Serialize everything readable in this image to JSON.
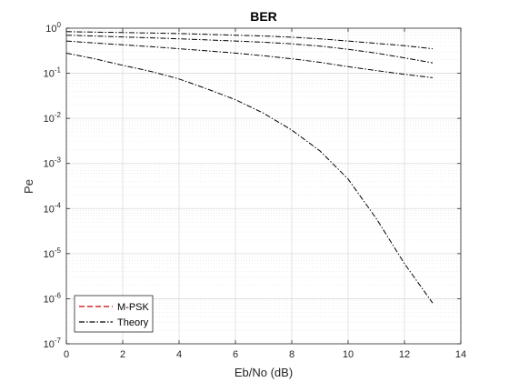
{
  "chart_data": {
    "type": "line",
    "title": "BER",
    "xlabel": "Eb/No (dB)",
    "ylabel": "Pe",
    "xlim": [
      0,
      14
    ],
    "ylim": [
      1e-07,
      1
    ],
    "yscale": "log",
    "grid": true,
    "legend": {
      "placement": "bottom-left",
      "entries": [
        "M-PSK",
        "Theory"
      ]
    },
    "x_ticks": [
      "0",
      "2",
      "4",
      "6",
      "8",
      "10",
      "12",
      "14"
    ],
    "y_ticks": [
      {
        "base": "10",
        "exp": "0"
      },
      {
        "base": "10",
        "exp": "-1"
      },
      {
        "base": "10",
        "exp": "-2"
      },
      {
        "base": "10",
        "exp": "-3"
      },
      {
        "base": "10",
        "exp": "-4"
      },
      {
        "base": "10",
        "exp": "-5"
      },
      {
        "base": "10",
        "exp": "-6"
      },
      {
        "base": "10",
        "exp": "-7"
      }
    ],
    "x": [
      0,
      1,
      2,
      3,
      4,
      5,
      6,
      7,
      8,
      9,
      10,
      11,
      12,
      13
    ],
    "series": [
      {
        "legend": "Theory",
        "color": "#000000",
        "style": "dash-dot",
        "values": [
          0.28,
          0.21,
          0.15,
          0.11,
          0.075,
          0.045,
          0.026,
          0.013,
          0.0055,
          0.0019,
          0.00045,
          6e-05,
          6e-06,
          8e-07
        ]
      },
      {
        "legend": "Theory",
        "color": "#000000",
        "style": "dash-dot",
        "values": [
          0.52,
          0.47,
          0.43,
          0.39,
          0.35,
          0.315,
          0.28,
          0.245,
          0.21,
          0.175,
          0.14,
          0.115,
          0.095,
          0.08
        ]
      },
      {
        "legend": "Theory",
        "color": "#000000",
        "style": "dash-dot",
        "values": [
          0.7,
          0.67,
          0.64,
          0.61,
          0.58,
          0.55,
          0.52,
          0.49,
          0.45,
          0.4,
          0.34,
          0.28,
          0.22,
          0.17
        ]
      },
      {
        "legend": "Theory",
        "color": "#000000",
        "style": "dash-dot",
        "values": [
          0.84,
          0.82,
          0.8,
          0.78,
          0.76,
          0.73,
          0.7,
          0.67,
          0.63,
          0.58,
          0.52,
          0.46,
          0.41,
          0.35
        ]
      }
    ],
    "legend_styles": [
      {
        "label": "M-PSK",
        "color": "#d00000",
        "style": "dashed"
      },
      {
        "label": "Theory",
        "color": "#000000",
        "style": "dash-dot"
      }
    ]
  }
}
